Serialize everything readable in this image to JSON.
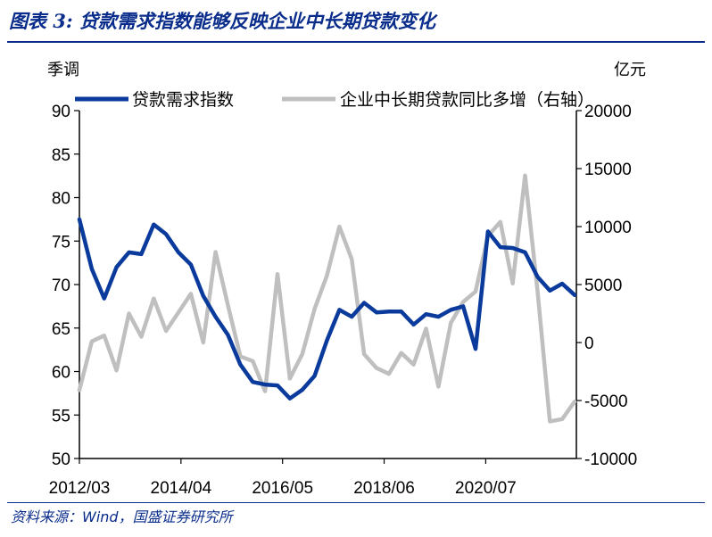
{
  "header": {
    "title": "图表 3:  贷款需求指数能够反映企业中长期贷款变化"
  },
  "footer": {
    "source": "资料来源：Wind，国盛证券研究所"
  },
  "chart_data": {
    "type": "line",
    "left_unit": "季调",
    "right_unit": "亿元",
    "y_left": {
      "min": 50,
      "max": 90,
      "ticks": [
        "90",
        "85",
        "80",
        "75",
        "70",
        "65",
        "60",
        "55",
        "50"
      ]
    },
    "y_right": {
      "min": -10000,
      "max": 20000,
      "ticks": [
        "20000",
        "15000",
        "10000",
        "5000",
        "0",
        "-5000",
        "-10000"
      ]
    },
    "x_tick_labels": [
      "2012/03",
      "2014/04",
      "2016/05",
      "2018/06",
      "2020/07"
    ],
    "x_tick_positions": [
      0,
      8,
      16,
      24,
      32
    ],
    "x_range": [
      0,
      39
    ],
    "legend_position": "top",
    "colors": {
      "left_series": "#0a3b9c",
      "right_series": "#bfbfbf"
    },
    "series": [
      {
        "name": "贷款需求指数",
        "axis": "left",
        "values": [
          77.5,
          71.8,
          68.4,
          72.0,
          73.7,
          73.5,
          76.9,
          75.8,
          73.7,
          72.3,
          68.7,
          66.3,
          64.2,
          60.8,
          58.8,
          58.5,
          58.4,
          56.9,
          57.9,
          59.5,
          63.6,
          67.1,
          66.3,
          67.9,
          66.8,
          66.9,
          66.9,
          65.4,
          66.6,
          66.3,
          67.1,
          67.5,
          62.6,
          76.1,
          74.3,
          74.2,
          73.7,
          70.9,
          69.3,
          70.1,
          68.8
        ]
      },
      {
        "name": "企业中长期贷款同比多增（右轴）",
        "axis": "right",
        "values": [
          -4100,
          100,
          600,
          -2400,
          2500,
          500,
          3800,
          1000,
          2600,
          4200,
          0,
          7800,
          3200,
          -1200,
          -1600,
          -4200,
          5900,
          -3100,
          -1000,
          2900,
          5800,
          10000,
          7200,
          -1000,
          -2200,
          -2700,
          -900,
          -1900,
          1200,
          -3800,
          1700,
          3500,
          4400,
          9200,
          10400,
          5100,
          14400,
          4500,
          -6800,
          -6600,
          -5100
        ]
      }
    ]
  }
}
